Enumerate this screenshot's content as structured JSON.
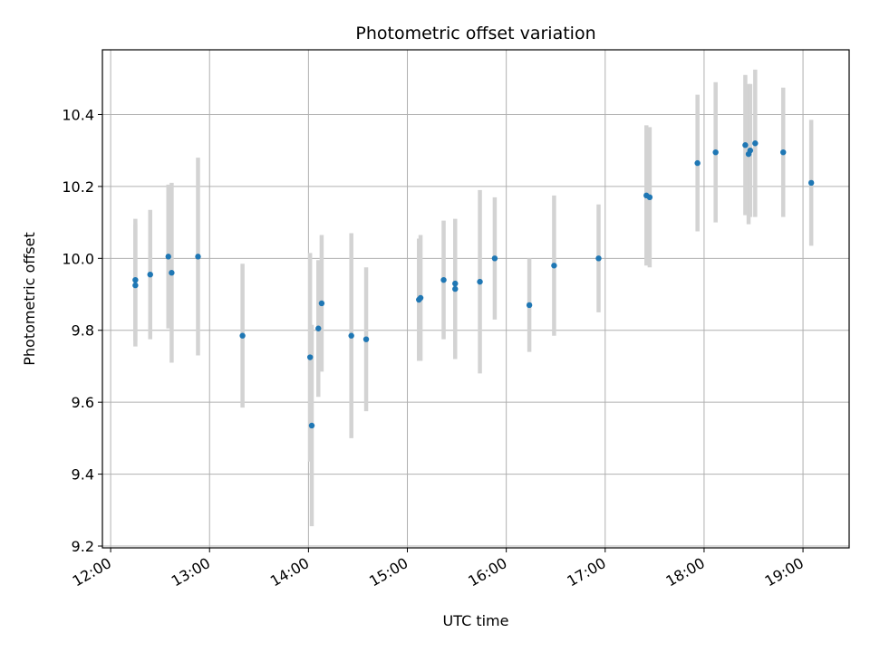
{
  "chart_data": {
    "type": "scatter",
    "title": "Photometric offset variation",
    "xlabel": "UTC time",
    "ylabel": "Photometric offset",
    "x_unit": "UTC time (HH:MM)",
    "xlim": [
      "11:55",
      "19:28"
    ],
    "ylim": [
      9.195,
      10.58
    ],
    "grid": true,
    "x_ticks": [
      "12:00",
      "13:00",
      "14:00",
      "15:00",
      "16:00",
      "17:00",
      "18:00",
      "19:00"
    ],
    "y_ticks": [
      9.2,
      9.4,
      9.6,
      9.8,
      10.0,
      10.2,
      10.4
    ],
    "y_tick_labels": [
      "9.2",
      "9.4",
      "9.6",
      "9.8",
      "10.0",
      "10.2",
      "10.4"
    ],
    "marker_color": "#1f77b4",
    "errorbar_color": "#d3d3d3",
    "points": [
      {
        "x": "12:15",
        "y": 9.94,
        "yerr": 0.17
      },
      {
        "x": "12:15",
        "y": 9.925,
        "yerr": 0.17
      },
      {
        "x": "12:24",
        "y": 9.955,
        "yerr": 0.18
      },
      {
        "x": "12:35",
        "y": 10.005,
        "yerr": 0.2
      },
      {
        "x": "12:37",
        "y": 9.96,
        "yerr": 0.25
      },
      {
        "x": "12:53",
        "y": 10.005,
        "yerr": 0.275
      },
      {
        "x": "13:20",
        "y": 9.785,
        "yerr": 0.2
      },
      {
        "x": "14:01",
        "y": 9.725,
        "yerr": 0.29
      },
      {
        "x": "14:02",
        "y": 9.535,
        "yerr": 0.28
      },
      {
        "x": "14:06",
        "y": 9.805,
        "yerr": 0.19
      },
      {
        "x": "14:08",
        "y": 9.875,
        "yerr": 0.19
      },
      {
        "x": "14:26",
        "y": 9.785,
        "yerr": 0.285
      },
      {
        "x": "14:35",
        "y": 9.775,
        "yerr": 0.2
      },
      {
        "x": "15:07",
        "y": 9.885,
        "yerr": 0.17
      },
      {
        "x": "15:08",
        "y": 9.89,
        "yerr": 0.175
      },
      {
        "x": "15:22",
        "y": 9.94,
        "yerr": 0.165
      },
      {
        "x": "15:29",
        "y": 9.915,
        "yerr": 0.195
      },
      {
        "x": "15:29",
        "y": 9.93,
        "yerr": 0.175
      },
      {
        "x": "15:44",
        "y": 9.935,
        "yerr": 0.255
      },
      {
        "x": "15:53",
        "y": 10.0,
        "yerr": 0.17
      },
      {
        "x": "16:14",
        "y": 9.87,
        "yerr": 0.13
      },
      {
        "x": "16:29",
        "y": 9.98,
        "yerr": 0.195
      },
      {
        "x": "16:56",
        "y": 10.0,
        "yerr": 0.15
      },
      {
        "x": "17:25",
        "y": 10.175,
        "yerr": 0.195
      },
      {
        "x": "17:27",
        "y": 10.17,
        "yerr": 0.195
      },
      {
        "x": "17:56",
        "y": 10.265,
        "yerr": 0.19
      },
      {
        "x": "18:07",
        "y": 10.295,
        "yerr": 0.195
      },
      {
        "x": "18:25",
        "y": 10.315,
        "yerr": 0.195
      },
      {
        "x": "18:27",
        "y": 10.29,
        "yerr": 0.195
      },
      {
        "x": "18:28",
        "y": 10.3,
        "yerr": 0.185
      },
      {
        "x": "18:31",
        "y": 10.32,
        "yerr": 0.205
      },
      {
        "x": "18:48",
        "y": 10.295,
        "yerr": 0.18
      },
      {
        "x": "19:05",
        "y": 10.21,
        "yerr": 0.175
      }
    ]
  }
}
